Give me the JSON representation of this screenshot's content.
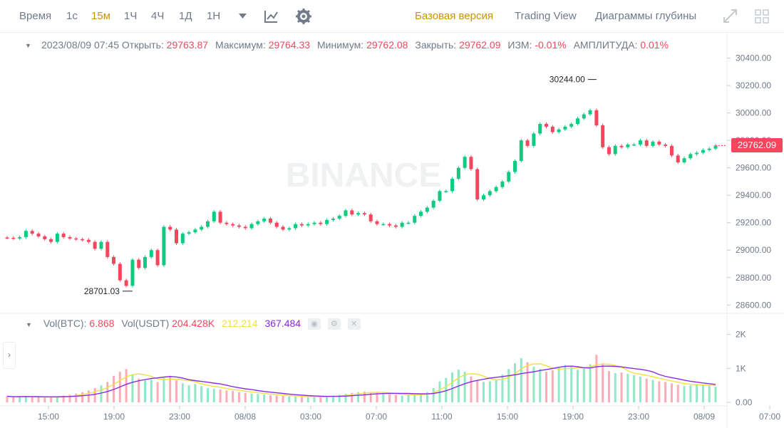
{
  "toolbar": {
    "time_label": "Время",
    "intervals": [
      "1с",
      "15м",
      "1Ч",
      "4Ч",
      "1Д",
      "1Н"
    ],
    "active_interval": "15м",
    "views": [
      "Базовая версия",
      "Trading View",
      "Диаграммы глубины"
    ],
    "active_view": "Базовая версия",
    "icons": [
      "chevron-down-icon",
      "indicator-icon",
      "gear-icon",
      "expand-icon",
      "grid-icon"
    ]
  },
  "ohlc": {
    "datetime": "2023/08/09 07:45",
    "open_label": "Открыть:",
    "open": "29763.87",
    "high_label": "Максимум:",
    "high": "29764.33",
    "low_label": "Минимум:",
    "low": "29762.08",
    "close_label": "Закрыть:",
    "close": "29762.09",
    "change_label": "ИЗМ:",
    "change": "-0.01%",
    "amplitude_label": "АМПЛИТУДА:",
    "amplitude": "0.01%"
  },
  "volume_legend": {
    "btc_label": "Vol(BTC):",
    "btc": "6.868",
    "usdt_label": "Vol(USDT)",
    "usdt": "204.428K",
    "ma1": "212.214",
    "ma2": "367.484"
  },
  "last_price": "29762.09",
  "watermark": "BINANCE",
  "colors": {
    "up": "#0ecb81",
    "down": "#f6465d",
    "ma_yellow": "#f0e040",
    "ma_purple": "#8a2be2",
    "accent": "#c99400"
  },
  "chart_data": {
    "type": "candlestick",
    "price_axis": [
      "30400.00",
      "30200.00",
      "30000.00",
      "29800.00",
      "29600.00",
      "29400.00",
      "29200.00",
      "29000.00",
      "28800.00",
      "28600.00"
    ],
    "price_range": [
      28560,
      30460
    ],
    "volume_axis": [
      "2K",
      "1K",
      "0.00"
    ],
    "volume_range": [
      0,
      2200
    ],
    "time_axis": [
      "15:00",
      "19:00",
      "23:00",
      "08/08",
      "03:00",
      "07:00",
      "11:00",
      "15:00",
      "19:00",
      "23:00",
      "08/09",
      "07:00"
    ],
    "high_marker": "30244.00",
    "low_marker": "28701.03",
    "closes": [
      29090,
      29085,
      29095,
      29140,
      29120,
      29100,
      29080,
      29060,
      29120,
      29095,
      29085,
      29080,
      29075,
      29060,
      29010,
      29060,
      28950,
      28900,
      28780,
      28740,
      28930,
      28870,
      28950,
      29000,
      28890,
      29170,
      29150,
      29050,
      29120,
      29130,
      29150,
      29170,
      29210,
      29280,
      29200,
      29190,
      29180,
      29170,
      29160,
      29190,
      29210,
      29230,
      29200,
      29170,
      29150,
      29160,
      29190,
      29180,
      29190,
      29200,
      29190,
      29220,
      29230,
      29250,
      29290,
      29260,
      29270,
      29260,
      29210,
      29190,
      29190,
      29180,
      29170,
      29200,
      29200,
      29250,
      29280,
      29310,
      29360,
      29430,
      29430,
      29520,
      29600,
      29680,
      29590,
      29370,
      29400,
      29430,
      29460,
      29500,
      29570,
      29650,
      29800,
      29760,
      29850,
      29920,
      29900,
      29860,
      29880,
      29900,
      29920,
      29960,
      29990,
      30020,
      29910,
      29750,
      29700,
      29760,
      29750,
      29770,
      29770,
      29800,
      29760,
      29790,
      29770,
      29760,
      29690,
      29640,
      29670,
      29700,
      29710,
      29730,
      29740,
      29762
    ],
    "volumes": [
      180,
      150,
      170,
      190,
      160,
      150,
      140,
      160,
      170,
      200,
      220,
      260,
      300,
      350,
      420,
      500,
      600,
      780,
      900,
      980,
      820,
      700,
      650,
      680,
      600,
      720,
      780,
      650,
      560,
      500,
      540,
      480,
      420,
      400,
      380,
      350,
      340,
      300,
      280,
      260,
      250,
      230,
      210,
      200,
      190,
      180,
      170,
      160,
      150,
      160,
      170,
      180,
      200,
      220,
      250,
      280,
      300,
      320,
      300,
      280,
      260,
      240,
      220,
      200,
      210,
      230,
      260,
      300,
      420,
      620,
      720,
      880,
      960,
      900,
      760,
      640,
      600,
      620,
      680,
      820,
      980,
      1150,
      1300,
      1180,
      1050,
      980,
      900,
      940,
      1020,
      1100,
      1050,
      960,
      1000,
      1120,
      1400,
      1150,
      920,
      860,
      880,
      840,
      800,
      760,
      700,
      660,
      620,
      600,
      560,
      520,
      480,
      500,
      540,
      520,
      490,
      460
    ]
  }
}
